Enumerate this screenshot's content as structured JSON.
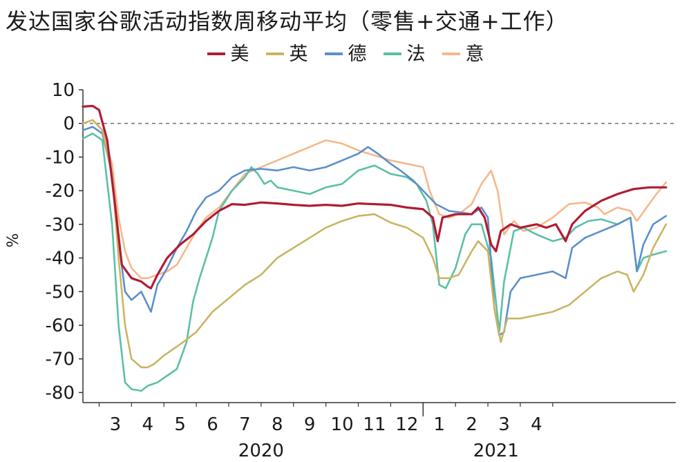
{
  "chart_data": {
    "type": "line",
    "title": "发达国家谷歌活动指数周移动平均（零售+交通+工作）",
    "ylabel": "%",
    "xlabel": "",
    "ylim": [
      -80,
      10
    ],
    "yticks": [
      10,
      0,
      -10,
      -20,
      -30,
      -40,
      -50,
      -60,
      -70,
      -80
    ],
    "zero_line": "dashed",
    "grid": false,
    "legend_position": "top-center",
    "x_month_labels": [
      "3",
      "4",
      "5",
      "6",
      "7",
      "8",
      "9",
      "10",
      "11",
      "12",
      "1",
      "2",
      "3",
      "4"
    ],
    "year_labels": [
      "2020",
      "2021"
    ],
    "x_unit": "months since 2020-02-15",
    "series": [
      {
        "name": "美",
        "color": "#b01c34",
        "points": [
          [
            0,
            5
          ],
          [
            0.3,
            5.2
          ],
          [
            0.5,
            4
          ],
          [
            0.75,
            -5
          ],
          [
            1,
            -25
          ],
          [
            1.2,
            -42
          ],
          [
            1.5,
            -46
          ],
          [
            1.8,
            -47
          ],
          [
            2.0,
            -48.5
          ],
          [
            2.1,
            -49
          ],
          [
            2.3,
            -45
          ],
          [
            2.6,
            -40
          ],
          [
            3.0,
            -36
          ],
          [
            3.4,
            -33
          ],
          [
            3.8,
            -29
          ],
          [
            4.2,
            -26
          ],
          [
            4.6,
            -24
          ],
          [
            5.0,
            -24.2
          ],
          [
            5.5,
            -23.5
          ],
          [
            6.0,
            -23.8
          ],
          [
            6.5,
            -24.2
          ],
          [
            7.0,
            -24.5
          ],
          [
            7.5,
            -24.2
          ],
          [
            8.0,
            -24.5
          ],
          [
            8.5,
            -23.8
          ],
          [
            9.0,
            -24
          ],
          [
            9.5,
            -24.2
          ],
          [
            10.0,
            -25
          ],
          [
            10.5,
            -25.5
          ],
          [
            10.8,
            -28
          ],
          [
            10.95,
            -35
          ],
          [
            11.1,
            -28
          ],
          [
            11.5,
            -27
          ],
          [
            12.0,
            -27
          ],
          [
            12.2,
            -25
          ],
          [
            12.4,
            -28
          ],
          [
            12.6,
            -36
          ],
          [
            12.75,
            -38
          ],
          [
            12.9,
            -32
          ],
          [
            13.2,
            -30
          ],
          [
            13.5,
            -31
          ],
          [
            14.0,
            -30
          ],
          [
            14.3,
            -31
          ],
          [
            14.6,
            -30
          ],
          [
            14.9,
            -35
          ],
          [
            15.1,
            -30
          ],
          [
            15.5,
            -26
          ],
          [
            16.0,
            -23
          ],
          [
            16.5,
            -21
          ],
          [
            17.0,
            -19.5
          ],
          [
            17.5,
            -19
          ],
          [
            18.0,
            -19
          ]
        ]
      },
      {
        "name": "英",
        "color": "#c9b561",
        "points": [
          [
            0,
            0
          ],
          [
            0.3,
            1
          ],
          [
            0.6,
            -2
          ],
          [
            0.9,
            -15
          ],
          [
            1.1,
            -40
          ],
          [
            1.3,
            -60
          ],
          [
            1.5,
            -70
          ],
          [
            1.8,
            -72.5
          ],
          [
            2.0,
            -72.5
          ],
          [
            2.2,
            -71.5
          ],
          [
            2.5,
            -69
          ],
          [
            2.8,
            -67
          ],
          [
            3.1,
            -65
          ],
          [
            3.5,
            -62
          ],
          [
            4.0,
            -56
          ],
          [
            4.5,
            -52
          ],
          [
            5.0,
            -48
          ],
          [
            5.5,
            -45
          ],
          [
            6.0,
            -40
          ],
          [
            6.5,
            -37
          ],
          [
            7.0,
            -34
          ],
          [
            7.5,
            -31
          ],
          [
            8.0,
            -29
          ],
          [
            8.5,
            -27.5
          ],
          [
            9.0,
            -27
          ],
          [
            9.5,
            -29.5
          ],
          [
            10.0,
            -31
          ],
          [
            10.5,
            -34
          ],
          [
            10.8,
            -40
          ],
          [
            11.0,
            -46
          ],
          [
            11.3,
            -46
          ],
          [
            11.6,
            -45
          ],
          [
            12.0,
            -38
          ],
          [
            12.2,
            -35
          ],
          [
            12.5,
            -38
          ],
          [
            12.7,
            -55
          ],
          [
            12.9,
            -65
          ],
          [
            13.1,
            -58
          ],
          [
            13.5,
            -58
          ],
          [
            14.0,
            -57
          ],
          [
            14.5,
            -56
          ],
          [
            15.0,
            -54
          ],
          [
            15.5,
            -50
          ],
          [
            16.0,
            -46
          ],
          [
            16.5,
            -44
          ],
          [
            16.8,
            -45
          ],
          [
            17.0,
            -50
          ],
          [
            17.3,
            -45
          ],
          [
            17.6,
            -37
          ],
          [
            18.0,
            -30
          ]
        ]
      },
      {
        "name": "德",
        "color": "#5a8fcb",
        "points": [
          [
            0,
            -2
          ],
          [
            0.3,
            -1
          ],
          [
            0.6,
            -3
          ],
          [
            0.9,
            -15
          ],
          [
            1.1,
            -35
          ],
          [
            1.3,
            -50
          ],
          [
            1.5,
            -52.5
          ],
          [
            1.8,
            -50
          ],
          [
            2.0,
            -54
          ],
          [
            2.1,
            -56
          ],
          [
            2.3,
            -48
          ],
          [
            2.6,
            -43
          ],
          [
            2.9,
            -37
          ],
          [
            3.2,
            -32
          ],
          [
            3.5,
            -26
          ],
          [
            3.8,
            -22
          ],
          [
            4.2,
            -20
          ],
          [
            4.6,
            -16
          ],
          [
            5.0,
            -14
          ],
          [
            5.5,
            -13.5
          ],
          [
            6.0,
            -14
          ],
          [
            6.5,
            -13
          ],
          [
            7.0,
            -14
          ],
          [
            7.5,
            -13
          ],
          [
            8.0,
            -11
          ],
          [
            8.5,
            -9
          ],
          [
            8.8,
            -7
          ],
          [
            9.1,
            -9
          ],
          [
            9.5,
            -12
          ],
          [
            9.8,
            -14
          ],
          [
            10.2,
            -17
          ],
          [
            10.6,
            -21
          ],
          [
            10.9,
            -24
          ],
          [
            11.3,
            -26
          ],
          [
            11.7,
            -26.5
          ],
          [
            12.0,
            -27
          ],
          [
            12.3,
            -25
          ],
          [
            12.5,
            -28
          ],
          [
            12.7,
            -55
          ],
          [
            12.85,
            -63
          ],
          [
            13.0,
            -62
          ],
          [
            13.2,
            -50
          ],
          [
            13.5,
            -46
          ],
          [
            14.0,
            -45
          ],
          [
            14.5,
            -44
          ],
          [
            14.9,
            -46
          ],
          [
            15.1,
            -37
          ],
          [
            15.5,
            -34
          ],
          [
            16.0,
            -32
          ],
          [
            16.5,
            -30
          ],
          [
            16.9,
            -28
          ],
          [
            17.1,
            -44
          ],
          [
            17.3,
            -36
          ],
          [
            17.6,
            -30
          ],
          [
            18.0,
            -27.5
          ]
        ]
      },
      {
        "name": "法",
        "color": "#5bbfa5",
        "points": [
          [
            0,
            -4.5
          ],
          [
            0.3,
            -3
          ],
          [
            0.6,
            -5
          ],
          [
            0.9,
            -30
          ],
          [
            1.1,
            -60
          ],
          [
            1.3,
            -77
          ],
          [
            1.5,
            -79
          ],
          [
            1.8,
            -79.5
          ],
          [
            2.0,
            -78
          ],
          [
            2.3,
            -77
          ],
          [
            2.6,
            -75
          ],
          [
            2.9,
            -73
          ],
          [
            3.2,
            -65
          ],
          [
            3.4,
            -53
          ],
          [
            3.6,
            -46
          ],
          [
            3.8,
            -40
          ],
          [
            4.0,
            -34
          ],
          [
            4.2,
            -26
          ],
          [
            4.6,
            -20
          ],
          [
            5.0,
            -16
          ],
          [
            5.2,
            -13
          ],
          [
            5.4,
            -15
          ],
          [
            5.6,
            -18
          ],
          [
            5.8,
            -17
          ],
          [
            6.0,
            -19
          ],
          [
            6.5,
            -20
          ],
          [
            7.0,
            -21
          ],
          [
            7.5,
            -19
          ],
          [
            8.0,
            -18
          ],
          [
            8.5,
            -14
          ],
          [
            9.0,
            -12.5
          ],
          [
            9.5,
            -15
          ],
          [
            10.0,
            -16
          ],
          [
            10.3,
            -18
          ],
          [
            10.6,
            -23
          ],
          [
            10.8,
            -30
          ],
          [
            11.0,
            -48
          ],
          [
            11.2,
            -49
          ],
          [
            11.5,
            -43
          ],
          [
            11.8,
            -33
          ],
          [
            12.0,
            -30
          ],
          [
            12.3,
            -30
          ],
          [
            12.6,
            -40
          ],
          [
            12.85,
            -62
          ],
          [
            13.0,
            -47
          ],
          [
            13.3,
            -32
          ],
          [
            13.6,
            -31
          ],
          [
            14.0,
            -33
          ],
          [
            14.5,
            -35
          ],
          [
            14.9,
            -34
          ],
          [
            15.2,
            -31
          ],
          [
            15.6,
            -29
          ],
          [
            16.0,
            -28.5
          ],
          [
            16.5,
            -30
          ],
          [
            16.9,
            -28
          ],
          [
            17.1,
            -44
          ],
          [
            17.3,
            -40
          ],
          [
            17.6,
            -39
          ],
          [
            18.0,
            -38
          ]
        ]
      },
      {
        "name": "意",
        "color": "#f5b88a",
        "points": [
          [
            0,
            0
          ],
          [
            0.3,
            1
          ],
          [
            0.6,
            -2
          ],
          [
            0.9,
            -12
          ],
          [
            1.1,
            -28
          ],
          [
            1.3,
            -38
          ],
          [
            1.5,
            -43
          ],
          [
            1.8,
            -46
          ],
          [
            2.0,
            -46
          ],
          [
            2.3,
            -45
          ],
          [
            2.6,
            -44
          ],
          [
            2.9,
            -42
          ],
          [
            3.2,
            -37
          ],
          [
            3.5,
            -32
          ],
          [
            3.8,
            -28
          ],
          [
            4.2,
            -25
          ],
          [
            4.6,
            -20
          ],
          [
            5.0,
            -15
          ],
          [
            5.5,
            -13
          ],
          [
            6.0,
            -11
          ],
          [
            6.5,
            -9
          ],
          [
            7.0,
            -7
          ],
          [
            7.5,
            -5
          ],
          [
            8.0,
            -6
          ],
          [
            8.5,
            -8
          ],
          [
            9.0,
            -9.5
          ],
          [
            9.5,
            -11
          ],
          [
            10.0,
            -12
          ],
          [
            10.5,
            -13
          ],
          [
            10.7,
            -20
          ],
          [
            11.0,
            -27
          ],
          [
            11.3,
            -28
          ],
          [
            11.6,
            -27
          ],
          [
            12.0,
            -24
          ],
          [
            12.3,
            -18
          ],
          [
            12.6,
            -14
          ],
          [
            12.8,
            -20
          ],
          [
            13.0,
            -33
          ],
          [
            13.3,
            -29
          ],
          [
            13.6,
            -32
          ],
          [
            14.0,
            -31
          ],
          [
            14.5,
            -28
          ],
          [
            15.0,
            -24
          ],
          [
            15.5,
            -23.5
          ],
          [
            15.9,
            -25
          ],
          [
            16.1,
            -27
          ],
          [
            16.5,
            -25
          ],
          [
            16.9,
            -26
          ],
          [
            17.1,
            -29
          ],
          [
            17.4,
            -25
          ],
          [
            17.7,
            -21
          ],
          [
            18.0,
            -17.5
          ]
        ]
      }
    ]
  }
}
